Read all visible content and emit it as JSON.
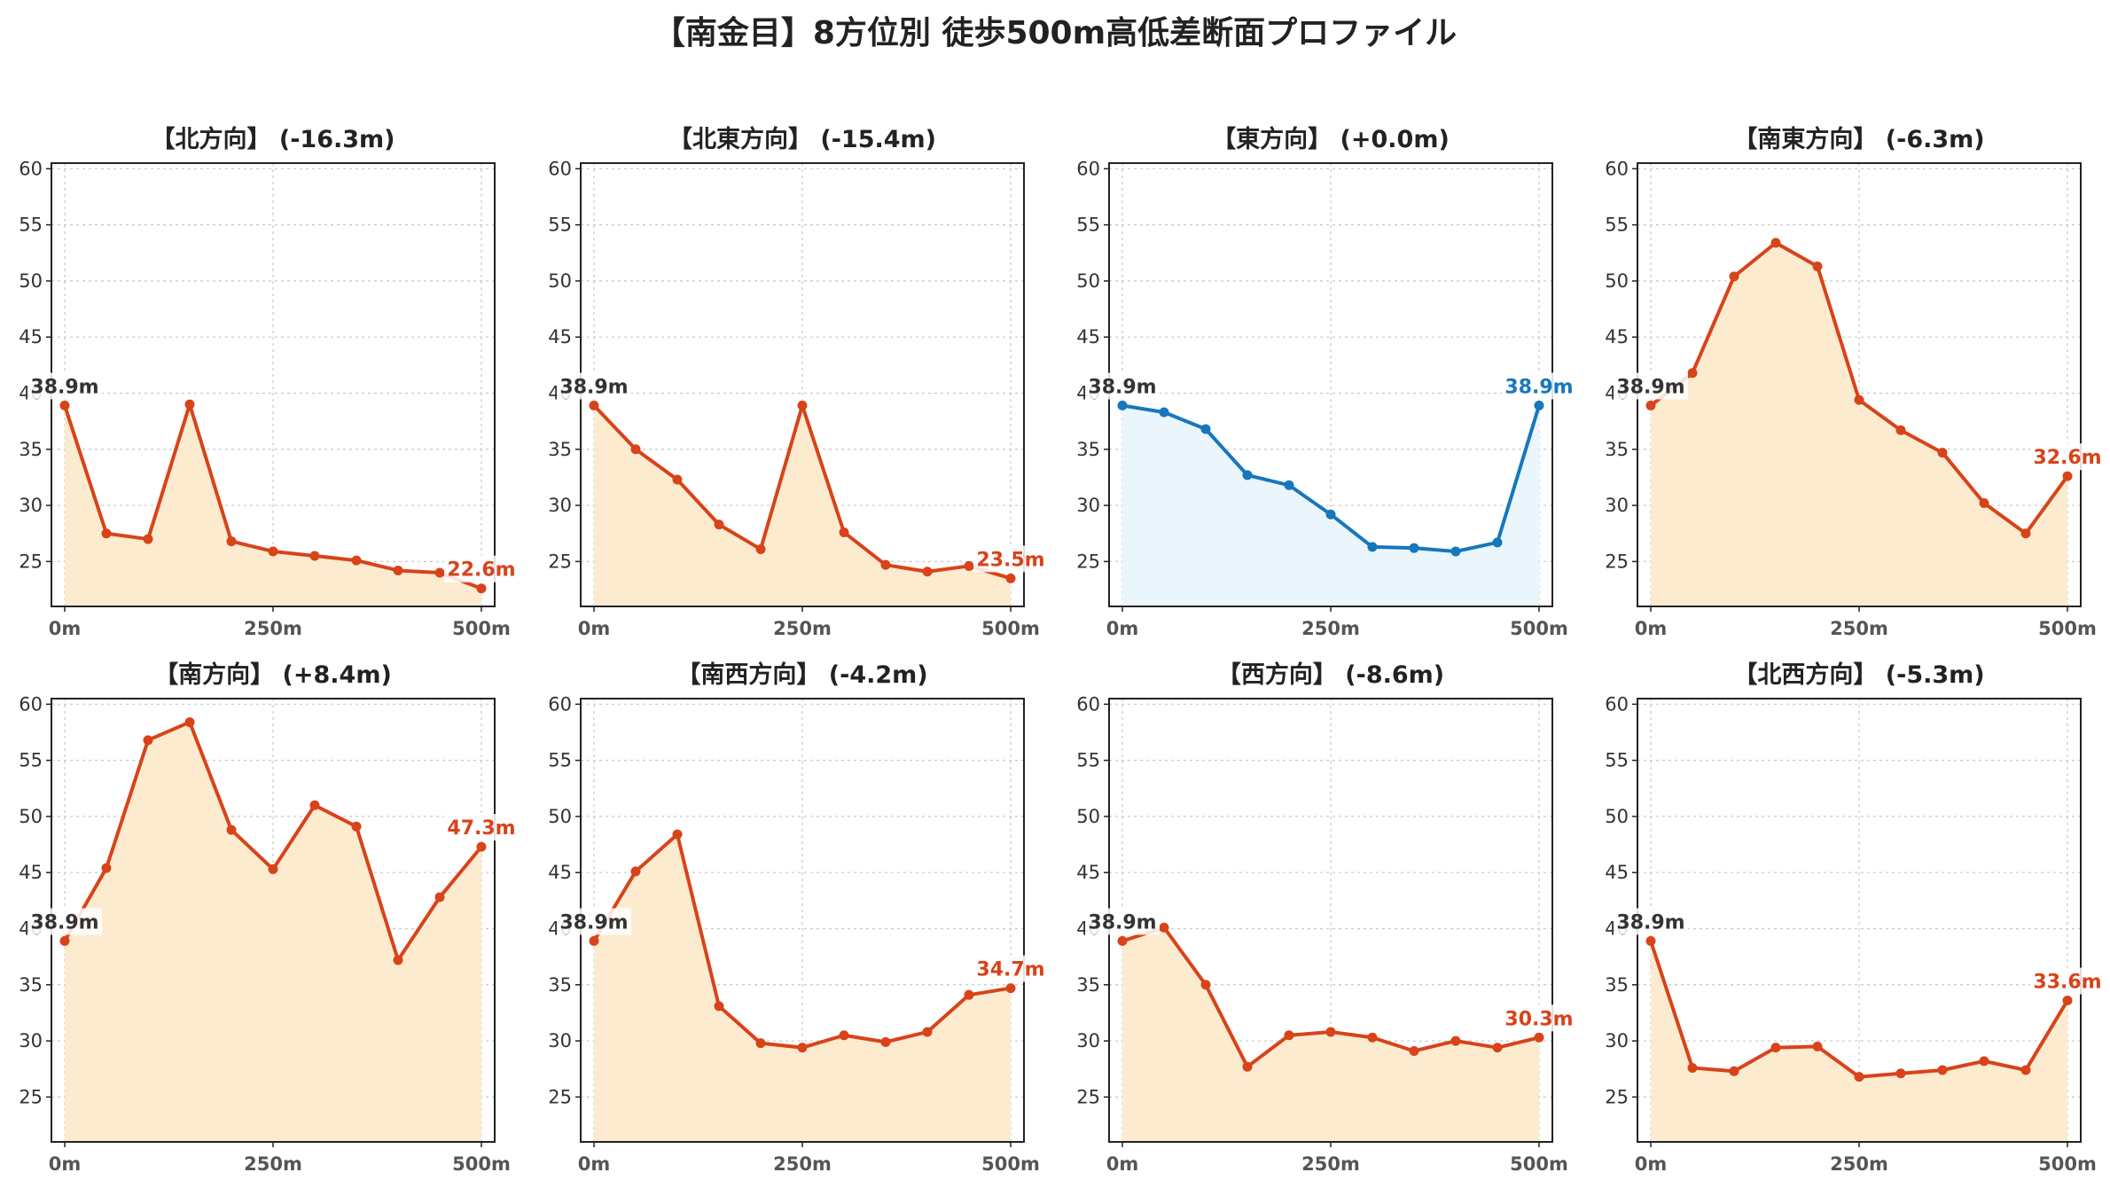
{
  "figure": {
    "title": "【南金目】8方位別 徒歩500m高低差断面プロファイル"
  },
  "colors": {
    "down": "#d8431a",
    "down_fill": "#fdebd0",
    "flat": "#1677bd",
    "flat_fill": "#eaf6fb",
    "start_label": "#333333"
  },
  "chart_data": [
    {
      "type": "area",
      "title": "【北方向】 (-16.3m)",
      "x": [
        0,
        50,
        100,
        150,
        200,
        250,
        300,
        350,
        400,
        450,
        500
      ],
      "series": [
        {
          "values": [
            38.9,
            27.5,
            27.0,
            39.0,
            26.8,
            25.9,
            25.5,
            25.1,
            24.2,
            24.0,
            22.6
          ]
        }
      ],
      "start_label": "38.9m",
      "end_label": "22.6m",
      "tone": "down",
      "ylim": [
        21,
        60.5
      ],
      "yticks": [
        25,
        30,
        35,
        40,
        45,
        50,
        55,
        60
      ],
      "xticks": [
        "0m",
        "250m",
        "500m"
      ],
      "grid": true
    },
    {
      "type": "area",
      "title": "【北東方向】 (-15.4m)",
      "x": [
        0,
        50,
        100,
        150,
        200,
        250,
        300,
        350,
        400,
        450,
        500
      ],
      "series": [
        {
          "values": [
            38.9,
            35.0,
            32.3,
            28.3,
            26.1,
            38.9,
            27.6,
            24.7,
            24.1,
            24.6,
            23.5
          ]
        }
      ],
      "start_label": "38.9m",
      "end_label": "23.5m",
      "tone": "down",
      "ylim": [
        21,
        60.5
      ],
      "yticks": [
        25,
        30,
        35,
        40,
        45,
        50,
        55,
        60
      ],
      "xticks": [
        "0m",
        "250m",
        "500m"
      ],
      "grid": true
    },
    {
      "type": "area",
      "title": "【東方向】 (+0.0m)",
      "x": [
        0,
        50,
        100,
        150,
        200,
        250,
        300,
        350,
        400,
        450,
        500
      ],
      "series": [
        {
          "values": [
            38.9,
            38.3,
            36.8,
            32.7,
            31.8,
            29.2,
            26.3,
            26.2,
            25.9,
            26.7,
            38.9
          ]
        }
      ],
      "start_label": "38.9m",
      "end_label": "38.9m",
      "tone": "flat",
      "ylim": [
        21,
        60.5
      ],
      "yticks": [
        25,
        30,
        35,
        40,
        45,
        50,
        55,
        60
      ],
      "xticks": [
        "0m",
        "250m",
        "500m"
      ],
      "grid": true
    },
    {
      "type": "area",
      "title": "【南東方向】 (-6.3m)",
      "x": [
        0,
        50,
        100,
        150,
        200,
        250,
        300,
        350,
        400,
        450,
        500
      ],
      "series": [
        {
          "values": [
            38.9,
            41.8,
            50.4,
            53.4,
            51.3,
            39.4,
            36.7,
            34.7,
            30.2,
            27.5,
            32.6
          ]
        }
      ],
      "start_label": "38.9m",
      "end_label": "32.6m",
      "tone": "down",
      "ylim": [
        21,
        60.5
      ],
      "yticks": [
        25,
        30,
        35,
        40,
        45,
        50,
        55,
        60
      ],
      "xticks": [
        "0m",
        "250m",
        "500m"
      ],
      "grid": true
    },
    {
      "type": "area",
      "title": "【南方向】 (+8.4m)",
      "x": [
        0,
        50,
        100,
        150,
        200,
        250,
        300,
        350,
        400,
        450,
        500
      ],
      "series": [
        {
          "values": [
            38.9,
            45.4,
            56.8,
            58.4,
            48.8,
            45.3,
            51.0,
            49.1,
            37.2,
            42.8,
            47.3
          ]
        }
      ],
      "start_label": "38.9m",
      "end_label": "47.3m",
      "tone": "down",
      "ylim": [
        21,
        60.5
      ],
      "yticks": [
        25,
        30,
        35,
        40,
        45,
        50,
        55,
        60
      ],
      "xticks": [
        "0m",
        "250m",
        "500m"
      ],
      "grid": true
    },
    {
      "type": "area",
      "title": "【南西方向】 (-4.2m)",
      "x": [
        0,
        50,
        100,
        150,
        200,
        250,
        300,
        350,
        400,
        450,
        500
      ],
      "series": [
        {
          "values": [
            38.9,
            45.1,
            48.4,
            33.1,
            29.8,
            29.4,
            30.5,
            29.9,
            30.8,
            34.1,
            34.7
          ]
        }
      ],
      "start_label": "38.9m",
      "end_label": "34.7m",
      "tone": "down",
      "ylim": [
        21,
        60.5
      ],
      "yticks": [
        25,
        30,
        35,
        40,
        45,
        50,
        55,
        60
      ],
      "xticks": [
        "0m",
        "250m",
        "500m"
      ],
      "grid": true
    },
    {
      "type": "area",
      "title": "【西方向】 (-8.6m)",
      "x": [
        0,
        50,
        100,
        150,
        200,
        250,
        300,
        350,
        400,
        450,
        500
      ],
      "series": [
        {
          "values": [
            38.9,
            40.1,
            35.0,
            27.7,
            30.5,
            30.8,
            30.3,
            29.1,
            30.0,
            29.4,
            30.3
          ]
        }
      ],
      "start_label": "38.9m",
      "end_label": "30.3m",
      "tone": "down",
      "ylim": [
        21,
        60.5
      ],
      "yticks": [
        25,
        30,
        35,
        40,
        45,
        50,
        55,
        60
      ],
      "xticks": [
        "0m",
        "250m",
        "500m"
      ],
      "grid": true
    },
    {
      "type": "area",
      "title": "【北西方向】 (-5.3m)",
      "x": [
        0,
        50,
        100,
        150,
        200,
        250,
        300,
        350,
        400,
        450,
        500
      ],
      "series": [
        {
          "values": [
            38.9,
            27.6,
            27.3,
            29.4,
            29.5,
            26.8,
            27.1,
            27.4,
            28.2,
            27.4,
            33.6
          ]
        }
      ],
      "start_label": "38.9m",
      "end_label": "33.6m",
      "tone": "down",
      "ylim": [
        21,
        60.5
      ],
      "yticks": [
        25,
        30,
        35,
        40,
        45,
        50,
        55,
        60
      ],
      "xticks": [
        "0m",
        "250m",
        "500m"
      ],
      "grid": true
    }
  ]
}
